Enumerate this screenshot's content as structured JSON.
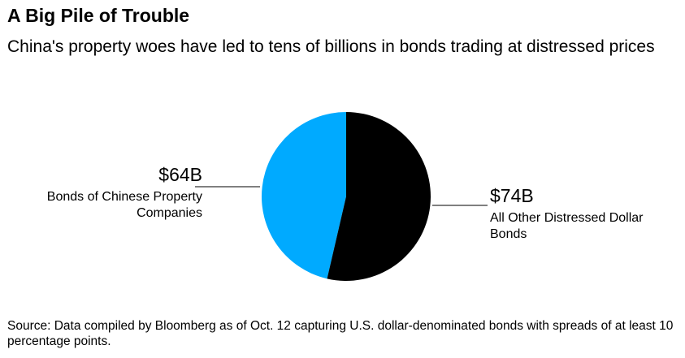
{
  "chart_data": {
    "type": "pie",
    "title": "A Big Pile of Trouble",
    "subtitle": "China's property woes have led to tens of billions in bonds trading at distressed prices",
    "slices": [
      {
        "label": "All Other Distressed Dollar Bonds",
        "value": 74,
        "value_label": "$74B",
        "color": "#000000"
      },
      {
        "label": "Bonds of Chinese Property Companies",
        "value": 64,
        "value_label": "$64B",
        "color": "#00aaff"
      }
    ],
    "source": "Source: Data compiled by Bloomberg as of Oct. 12 capturing U.S. dollar-denominated bonds with spreads of at least 10 percentage points."
  }
}
